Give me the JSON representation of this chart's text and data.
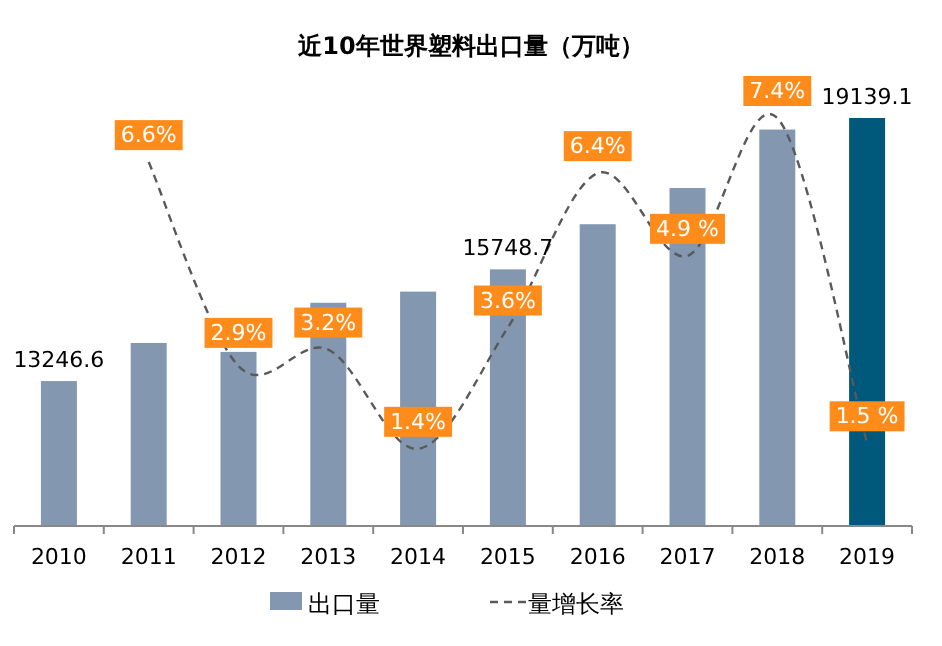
{
  "chart_data": {
    "type": "bar",
    "title": "近10年世界塑料出口量（万吨）",
    "categories": [
      "2010",
      "2011",
      "2012",
      "2013",
      "2014",
      "2015",
      "2016",
      "2017",
      "2018",
      "2019"
    ],
    "ylim": [
      10000,
      19139.1
    ],
    "y2lim": [
      0,
      7.4
    ],
    "tick_labels": "x",
    "grid": false,
    "legend": "bottom",
    "series": [
      {
        "name": "出口量",
        "colors": [
          "#8497b0",
          "#8497b0",
          "#8497b0",
          "#8497b0",
          "#8497b0",
          "#8497b0",
          "#8497b0",
          "#8497b0",
          "#8497b0",
          "#00587a"
        ],
        "values": [
          13246.6,
          14100,
          13900,
          15000,
          15250,
          15748.7,
          16760,
          17570,
          18880,
          19139.1
        ],
        "value_labels": [
          "13246.6",
          null,
          null,
          null,
          null,
          "15748.7",
          null,
          null,
          null,
          "19139.1"
        ]
      },
      {
        "name": "量增长率",
        "type": "line",
        "axis": "y2",
        "color": "#595959",
        "line_style": "dashed",
        "marker": "none",
        "values": [
          null,
          6.6,
          2.9,
          3.2,
          1.4,
          3.6,
          6.4,
          4.9,
          7.4,
          1.5
        ],
        "value_labels": [
          null,
          "6.6%",
          "2.9%",
          "3.2%",
          "1.4%",
          "3.6%",
          "6.4%",
          "4.9 %",
          "7.4%",
          "1.5 %"
        ]
      }
    ]
  }
}
